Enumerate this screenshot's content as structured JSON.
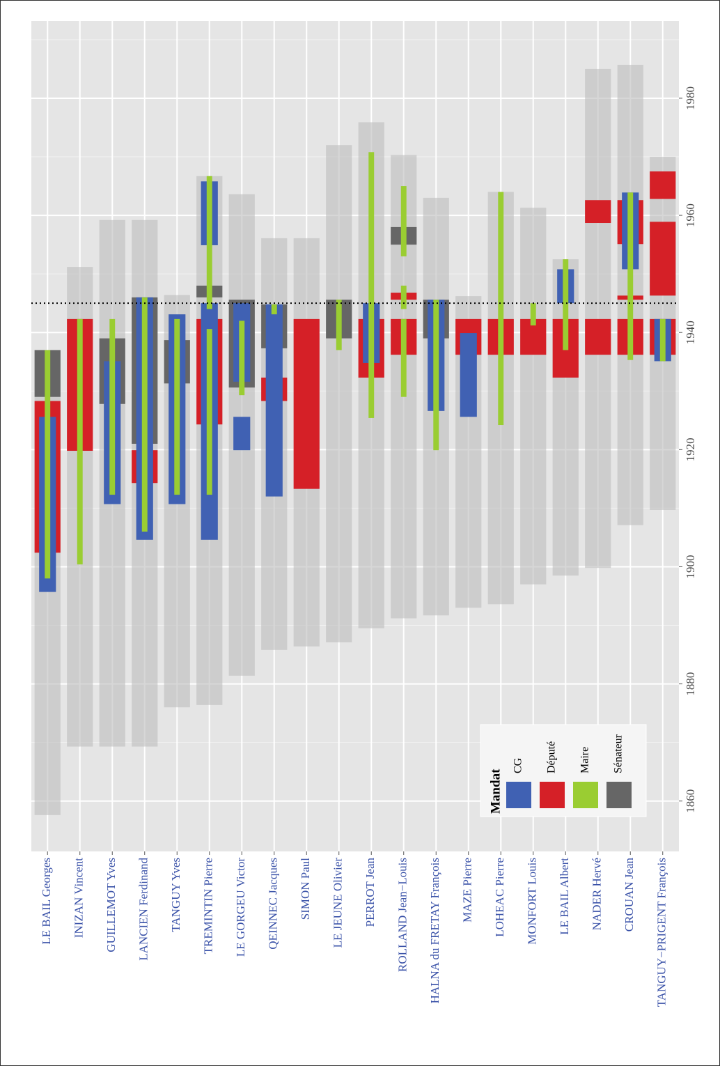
{
  "chart_data": {
    "type": "gantt",
    "categories": [
      "LE BAIL Georges",
      "INIZAN Vincent",
      "GUILLEMOT Yves",
      "LANCIEN Ferdinand",
      "TANGUY Yves",
      "TREMINTIN Pierre",
      "LE GORGEU Victor",
      "QEINNEC Jacques",
      "SIMON Paul",
      "LE JEUNE Olivier",
      "PERROT Jean",
      "ROLLAND Jean−Louis",
      "HALNA du FRETAY François",
      "MAZE Pierre",
      "LOHEAC Pierre",
      "MONFORT Louis",
      "LE BAIL Albert",
      "NADER Hervé",
      "CROUAN Jean",
      "TANGUY−PRIGENT François"
    ],
    "lifespans": [
      [
        1857.6,
        1937
      ],
      [
        1869.3,
        1951.2
      ],
      [
        1869.3,
        1959.2
      ],
      [
        1869.3,
        1959.2
      ],
      [
        1876,
        1946.4
      ],
      [
        1876.4,
        1966.7
      ],
      [
        1881.4,
        1963.6
      ],
      [
        1885.8,
        1956.1
      ],
      [
        1886.4,
        1956.1
      ],
      [
        1887.1,
        1972
      ],
      [
        1889.5,
        1975.9
      ],
      [
        1891.2,
        1970.3
      ],
      [
        1891.7,
        1963
      ],
      [
        1893,
        1946.2
      ],
      [
        1893.6,
        1964
      ],
      [
        1897,
        1961.3
      ],
      [
        1898.5,
        1952.5
      ],
      [
        1899.8,
        1985
      ],
      [
        1907.1,
        1985.7
      ],
      [
        1909.7,
        1970
      ]
    ],
    "legend_title": "Mandat",
    "series": [
      {
        "name": "CG",
        "color": "#4061b3",
        "values": [
          [
            [
              1895.7,
              1925.6
            ]
          ],
          [],
          [
            [
              1910.7,
              1935.1
            ]
          ],
          [
            [
              1904.6,
              1946
            ]
          ],
          [
            [
              1910.7,
              1943.1
            ]
          ],
          [
            [
              1904.6,
              1945
            ],
            [
              1954.9,
              1965.8
            ]
          ],
          [
            [
              1919.9,
              1925.6
            ],
            [
              1931.6,
              1945
            ]
          ],
          [
            [
              1912,
              1944.8
            ]
          ],
          [],
          [],
          [
            [
              1934.8,
              1945
            ]
          ],
          [],
          [
            [
              1926.6,
              1945.6
            ]
          ],
          [
            [
              1925.6,
              1939.9
            ]
          ],
          [],
          [],
          [
            [
              1945,
              1950.8
            ]
          ],
          [],
          [
            [
              1950.8,
              1963.9
            ]
          ],
          [
            [
              1935.1,
              1942.3
            ]
          ]
        ]
      },
      {
        "name": "Député",
        "color": "#d52027",
        "values": [
          [
            [
              1902.4,
              1928.3
            ]
          ],
          [
            [
              1919.8,
              1942.3
            ]
          ],
          [],
          [
            [
              1914.3,
              1919.9
            ]
          ],
          [],
          [
            [
              1924.3,
              1942.3
            ]
          ],
          [],
          [
            [
              1928.3,
              1932.3
            ]
          ],
          [
            [
              1913.3,
              1942.3
            ]
          ],
          [],
          [
            [
              1932.3,
              1942.3
            ]
          ],
          [
            [
              1936.2,
              1942.3
            ],
            [
              1945.6,
              1946.8
            ]
          ],
          [],
          [
            [
              1936.2,
              1942.3
            ]
          ],
          [
            [
              1936.2,
              1942.3
            ]
          ],
          [
            [
              1936.2,
              1942.3
            ]
          ],
          [
            [
              1932.3,
              1942.3
            ]
          ],
          [
            [
              1936.2,
              1942.3
            ],
            [
              1958.7,
              1962.6
            ]
          ],
          [
            [
              1936.2,
              1942.3
            ],
            [
              1945.6,
              1946.3
            ],
            [
              1955.1,
              1962.6
            ]
          ],
          [
            [
              1936.2,
              1942.3
            ],
            [
              1946.3,
              1958.9
            ],
            [
              1962.8,
              1967.5
            ]
          ]
        ]
      },
      {
        "name": "Maire",
        "color": "#9acd32",
        "values": [
          [
            [
              1898,
              1937
            ]
          ],
          [
            [
              1900.4,
              1942.3
            ]
          ],
          [
            [
              1912.3,
              1942.3
            ]
          ],
          [
            [
              1906,
              1946
            ]
          ],
          [
            [
              1912.3,
              1942.3
            ]
          ],
          [
            [
              1912.3,
              1940.6
            ],
            [
              1944,
              1966.7
            ]
          ],
          [
            [
              1929.3,
              1942
            ]
          ],
          [
            [
              1943.1,
              1944.8
            ]
          ],
          [],
          [
            [
              1937,
              1945.6
            ]
          ],
          [
            [
              1925.4,
              1970.8
            ]
          ],
          [
            [
              1929,
              1942.3
            ],
            [
              1944,
              1948
            ],
            [
              1953,
              1965
            ]
          ],
          [
            [
              1919.9,
              1945.6
            ]
          ],
          [],
          [
            [
              1924.2,
              1964
            ]
          ],
          [
            [
              1941.2,
              1945
            ]
          ],
          [
            [
              1937,
              1952.5
            ]
          ],
          [],
          [
            [
              1935.3,
              1963.9
            ]
          ],
          [
            [
              1935.1,
              1942.3
            ]
          ]
        ]
      },
      {
        "name": "Sénateur",
        "color": "#666666",
        "values": [
          [
            [
              1929,
              1937
            ]
          ],
          [],
          [
            [
              1927.8,
              1939
            ]
          ],
          [
            [
              1921,
              1946
            ]
          ],
          [
            [
              1931.3,
              1938.7
            ]
          ],
          [
            [
              1946,
              1948
            ]
          ],
          [
            [
              1930.6,
              1945.6
            ]
          ],
          [
            [
              1937.3,
              1944.8
            ]
          ],
          [],
          [
            [
              1939,
              1945.6
            ]
          ],
          [],
          [
            [
              1955,
              1958
            ]
          ],
          [
            [
              1939,
              1945.6
            ]
          ],
          [],
          [],
          [],
          [],
          [],
          [],
          []
        ]
      }
    ],
    "reference_line": 1945,
    "xlim": [
      1851.4,
      1993.2
    ],
    "xticks": [
      1860,
      1880,
      1900,
      1920,
      1940,
      1960,
      1980
    ],
    "minor_xticks": [
      1870,
      1890,
      1910,
      1930,
      1950,
      1970,
      1990
    ],
    "grid": true
  }
}
